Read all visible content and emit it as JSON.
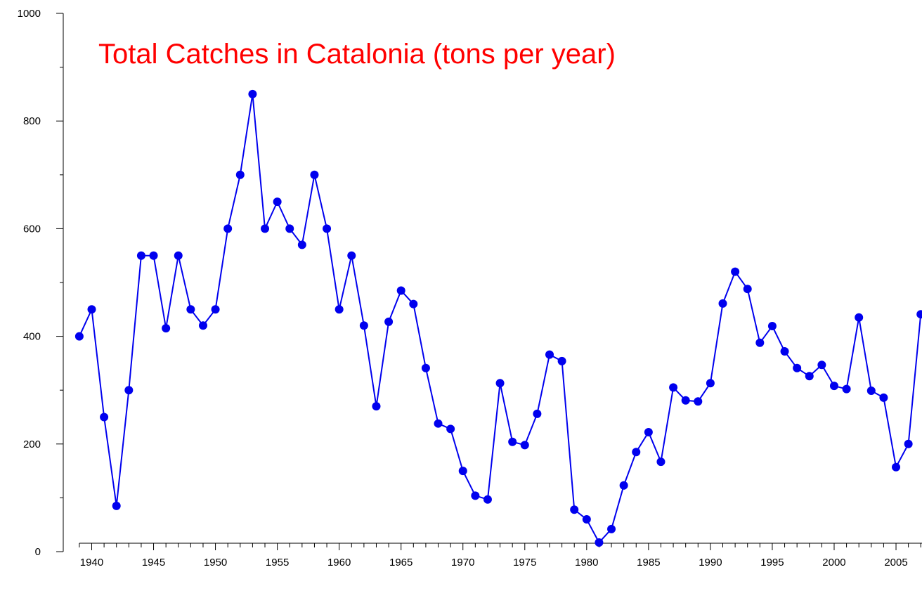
{
  "chart_data": {
    "type": "line",
    "title": "Total Catches in Catalonia (tons per year)",
    "x": [
      1939,
      1940,
      1941,
      1942,
      1943,
      1944,
      1945,
      1946,
      1947,
      1948,
      1949,
      1950,
      1951,
      1952,
      1953,
      1954,
      1955,
      1956,
      1957,
      1958,
      1959,
      1960,
      1961,
      1962,
      1963,
      1964,
      1965,
      1966,
      1967,
      1968,
      1969,
      1970,
      1971,
      1972,
      1973,
      1974,
      1975,
      1976,
      1977,
      1978,
      1979,
      1980,
      1981,
      1982,
      1983,
      1984,
      1985,
      1986,
      1987,
      1988,
      1989,
      1990,
      1991,
      1992,
      1993,
      1994,
      1995,
      1996,
      1997,
      1998,
      1999,
      2000,
      2001,
      2002,
      2003,
      2004,
      2005,
      2006,
      2007
    ],
    "series": [
      {
        "name": "Total catches",
        "color": "#0000ee",
        "values": [
          400,
          450,
          250,
          85,
          300,
          550,
          550,
          415,
          550,
          450,
          420,
          450,
          600,
          700,
          850,
          600,
          650,
          600,
          570,
          700,
          600,
          450,
          550,
          420,
          270,
          427,
          485,
          460,
          341,
          238,
          228,
          150,
          104,
          97,
          313,
          204,
          198,
          256,
          366,
          354,
          78,
          60,
          17,
          42,
          123,
          185,
          222,
          167,
          305,
          281,
          279,
          313,
          461,
          520,
          488,
          388,
          419,
          372,
          341,
          326,
          347,
          308,
          302,
          435,
          299,
          286,
          157,
          200,
          441
        ]
      }
    ],
    "xlim": [
      1937.7,
      2007.1
    ],
    "ylim": [
      0,
      1000
    ],
    "xticks": [
      1940,
      1945,
      1950,
      1955,
      1960,
      1965,
      1970,
      1975,
      1980,
      1985,
      1990,
      1995,
      2000,
      2005
    ],
    "xminorticks": [
      1939,
      1941,
      1942,
      1943,
      1944,
      1946,
      1947,
      1948,
      1949,
      1951,
      1952,
      1953,
      1954,
      1956,
      1957,
      1958,
      1959,
      1961,
      1962,
      1963,
      1964,
      1966,
      1967,
      1968,
      1969,
      1971,
      1972,
      1973,
      1974,
      1976,
      1977,
      1978,
      1979,
      1981,
      1982,
      1983,
      1984,
      1986,
      1987,
      1988,
      1989,
      1991,
      1992,
      1993,
      1994,
      1996,
      1997,
      1998,
      1999,
      2001,
      2002,
      2003,
      2004,
      2006,
      2007
    ],
    "yticks": [
      0,
      200,
      400,
      600,
      800,
      1000
    ],
    "yminorticks": [
      100,
      300,
      500,
      700,
      900
    ],
    "title_color": "#ff0000"
  }
}
